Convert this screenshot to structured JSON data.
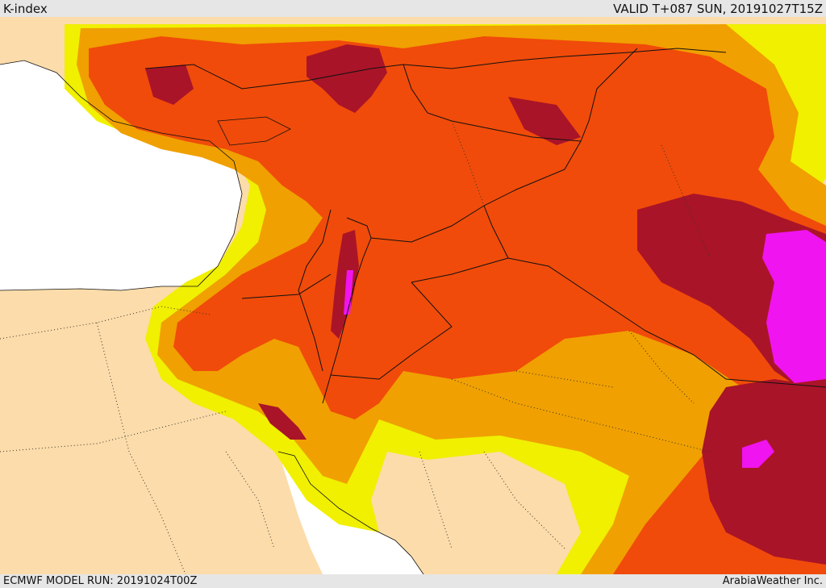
{
  "header": {
    "title": "K-index",
    "valid_time": "VALID T+087 SUN, 20191027T15Z"
  },
  "footer": {
    "model_run": "ECMWF MODEL RUN: 20191024T00Z",
    "credit": "ArabiaWeather Inc."
  },
  "legend_colors": {
    "sea": "#ffffff",
    "land_low": "#fcdcaa",
    "k_level_1": "#f0f000",
    "k_level_2": "#f0a000",
    "k_level_3": "#f04b0a",
    "k_level_4": "#aa1428",
    "k_level_5": "#f014f0"
  }
}
